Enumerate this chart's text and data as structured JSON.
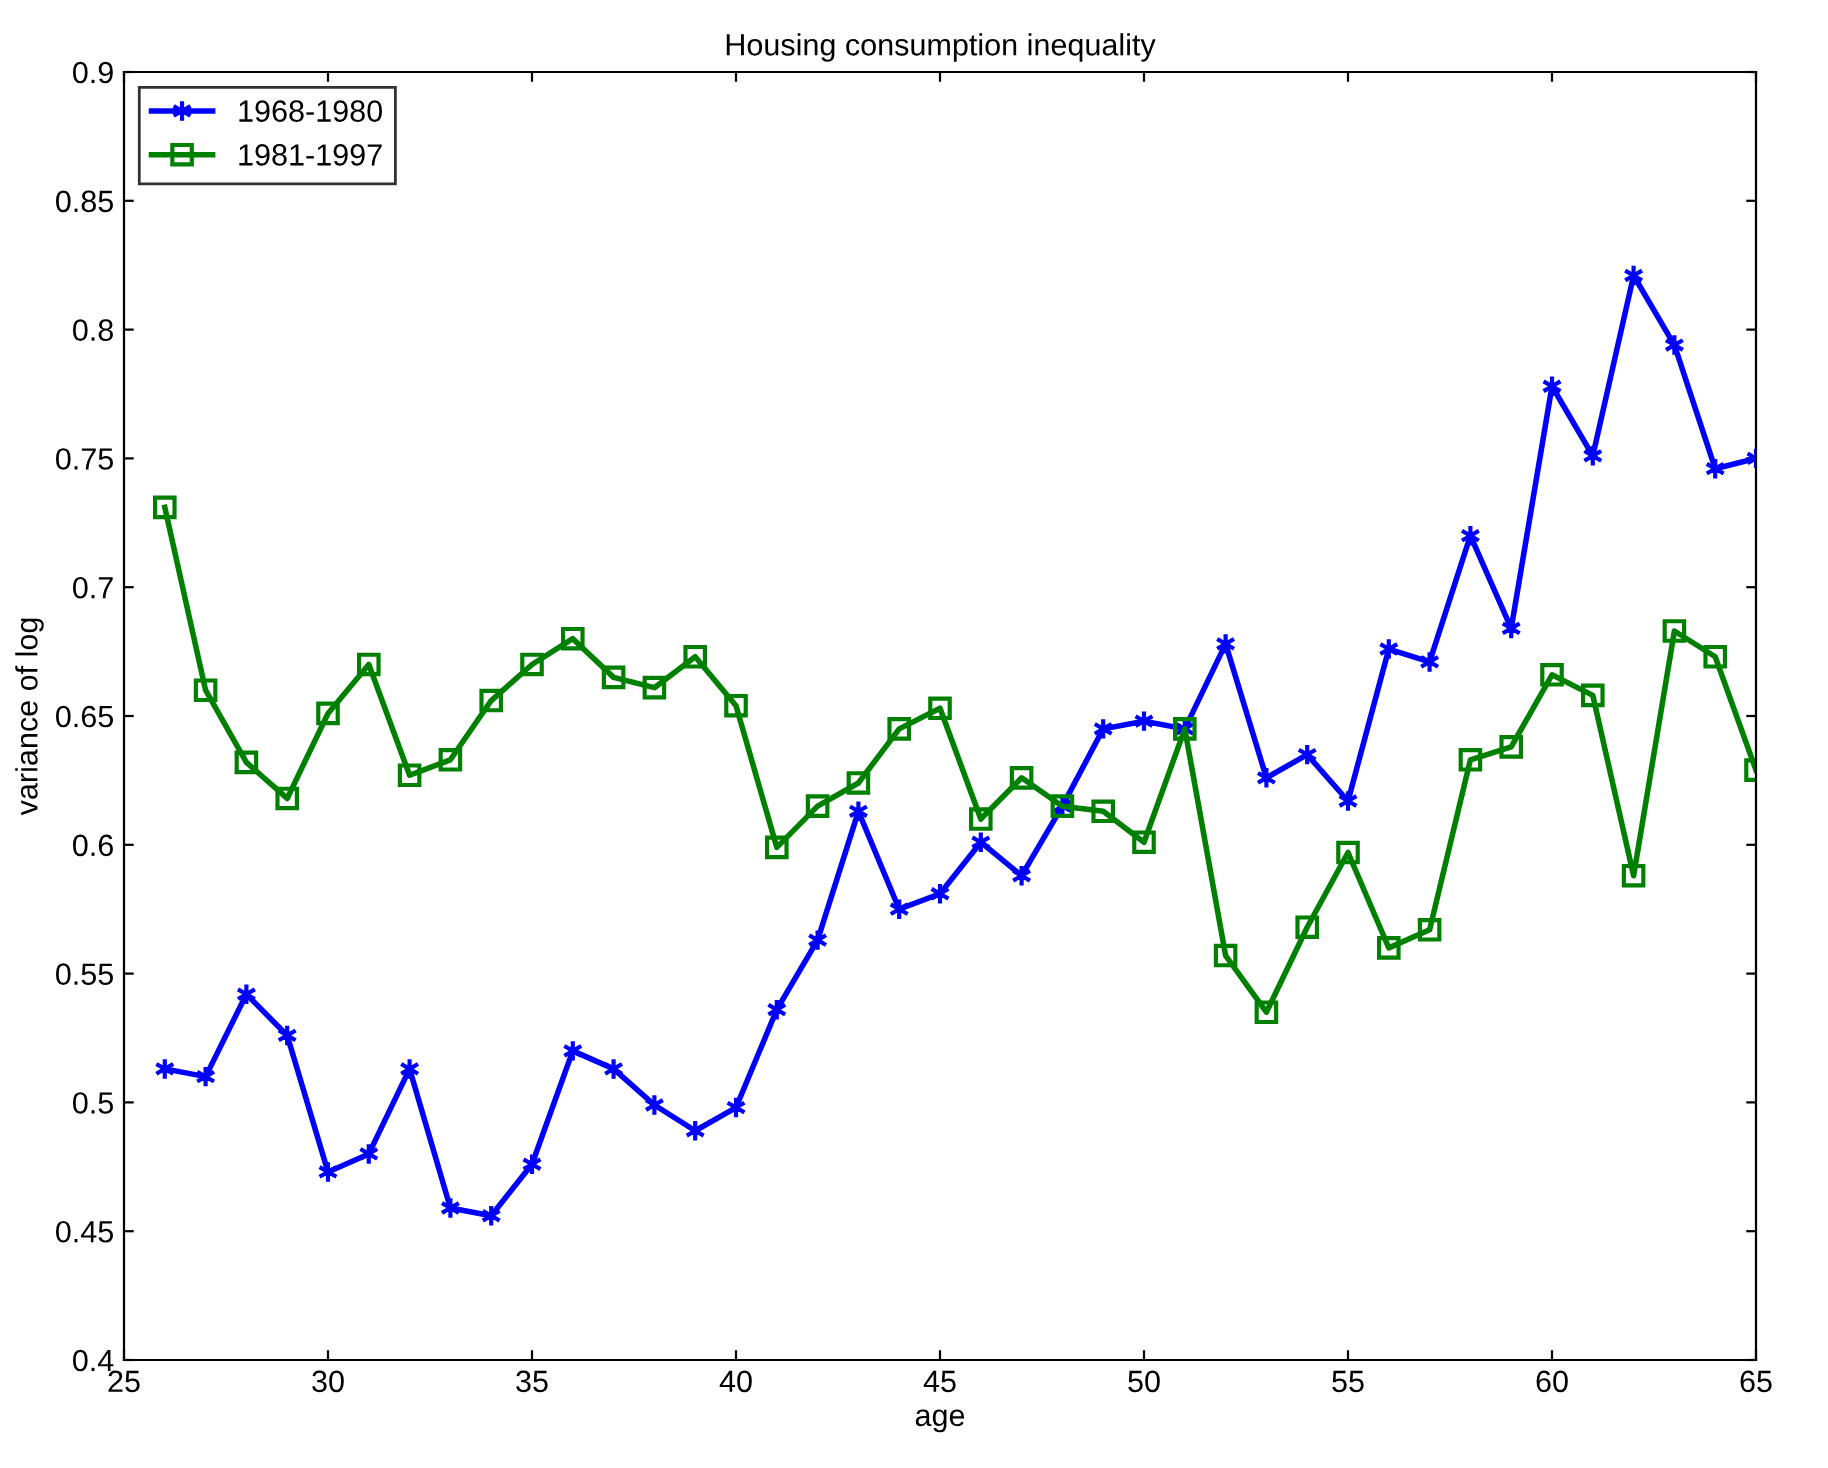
{
  "chart_data": {
    "type": "line",
    "title": "Housing consumption inequality",
    "xlabel": "age",
    "ylabel": "variance of log",
    "x": [
      26,
      27,
      28,
      29,
      30,
      31,
      32,
      33,
      34,
      35,
      36,
      37,
      38,
      39,
      40,
      41,
      42,
      43,
      44,
      45,
      46,
      47,
      48,
      49,
      50,
      51,
      52,
      53,
      54,
      55,
      56,
      57,
      58,
      59,
      60,
      61,
      62,
      63,
      64,
      65
    ],
    "series": [
      {
        "name": "1968-1980",
        "color": "#0000ff",
        "marker": "cross",
        "values": [
          0.513,
          0.51,
          0.542,
          0.526,
          0.473,
          0.48,
          0.513,
          0.459,
          0.456,
          0.476,
          0.52,
          0.513,
          0.499,
          0.489,
          0.498,
          0.536,
          0.563,
          0.613,
          0.575,
          0.581,
          0.601,
          0.588,
          0.615,
          0.645,
          0.648,
          0.645,
          0.678,
          0.626,
          0.635,
          0.617,
          0.676,
          0.671,
          0.72,
          0.684,
          0.778,
          0.751,
          0.821,
          0.794,
          0.746,
          0.75
        ]
      },
      {
        "name": "1981-1997",
        "color": "#008000",
        "marker": "square",
        "values": [
          0.731,
          0.66,
          0.632,
          0.618,
          0.651,
          0.67,
          0.627,
          0.633,
          0.656,
          0.67,
          0.68,
          0.665,
          0.661,
          0.673,
          0.654,
          0.599,
          0.615,
          0.624,
          0.645,
          0.653,
          0.61,
          0.626,
          0.615,
          0.613,
          0.601,
          0.645,
          0.557,
          0.535,
          0.568,
          0.597,
          0.56,
          0.567,
          0.633,
          0.638,
          0.666,
          0.658,
          0.588,
          0.683,
          0.673,
          0.629
        ]
      }
    ],
    "xlim": [
      25,
      65
    ],
    "xticks": [
      25,
      30,
      35,
      40,
      45,
      50,
      55,
      60,
      65
    ],
    "ylim": [
      0.4,
      0.9
    ],
    "yticks": [
      0.4,
      0.45,
      0.5,
      0.55,
      0.6,
      0.65,
      0.7,
      0.75,
      0.8,
      0.85,
      0.9
    ],
    "grid": false,
    "legend": "top left",
    "line_style": "solid"
  }
}
